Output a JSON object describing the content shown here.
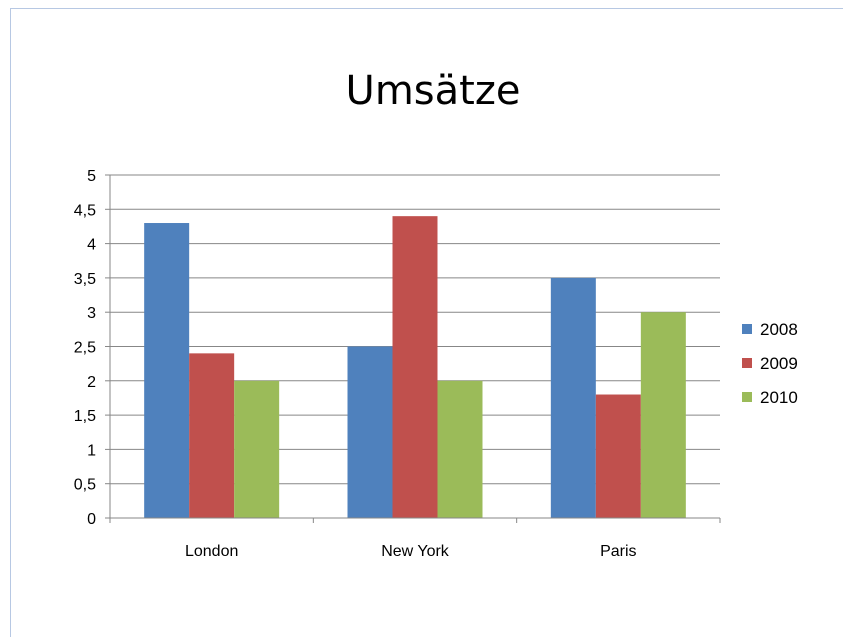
{
  "chart_data": {
    "type": "bar",
    "title": "Umsätze",
    "categories": [
      "London",
      "New York",
      "Paris"
    ],
    "series": [
      {
        "name": "2008",
        "color": "#4f81bd",
        "values": [
          4.3,
          2.5,
          3.5
        ]
      },
      {
        "name": "2009",
        "color": "#c0504d",
        "values": [
          2.4,
          4.4,
          1.8
        ]
      },
      {
        "name": "2010",
        "color": "#9bbb59",
        "values": [
          2.0,
          2.0,
          3.0
        ]
      }
    ],
    "ylim": [
      0,
      5
    ],
    "yticks": [
      "0",
      "0,5",
      "1",
      "1,5",
      "2",
      "2,5",
      "3",
      "3,5",
      "4",
      "4,5",
      "5"
    ],
    "ytick_values": [
      0,
      0.5,
      1,
      1.5,
      2,
      2.5,
      3,
      3.5,
      4,
      4.5,
      5
    ],
    "grid": true,
    "legend_position": "right",
    "xlabel": "",
    "ylabel": ""
  }
}
